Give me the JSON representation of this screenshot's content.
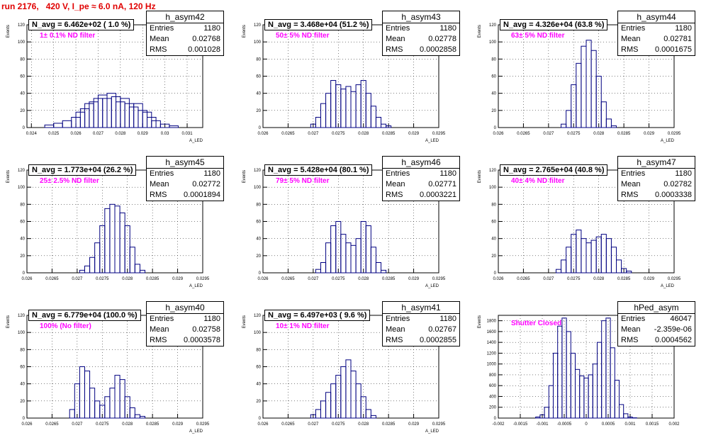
{
  "run_title": "run 2176,   420 V, I_pe ≈ 6.0 nA, 120 Hz",
  "ylabel": "Events",
  "stat_labels": {
    "entries": "Entries",
    "mean": "Mean",
    "rms": "RMS"
  },
  "colors": {
    "hist": "#000080",
    "filter": "#ff00ff",
    "title": "#e00000"
  },
  "chart_data": [
    {
      "type": "bar",
      "hist_name": "h_asym42",
      "navg": "N_avg = 6.462e+02 ( 1.0 %)",
      "filter": "1± 0.1% ND filter",
      "entries": "1180",
      "mean": "0.02768",
      "rms": "0.001028",
      "xlabel": "A_LED",
      "xlim": [
        0.0238,
        0.0317
      ],
      "ylim": [
        0,
        120
      ],
      "xticks": [
        0.024,
        0.025,
        0.026,
        0.027,
        0.028,
        0.029,
        0.03,
        0.031
      ],
      "xtick_labels": [
        "0.024",
        "0.025",
        "0.026",
        "0.027",
        "0.028",
        "0.029",
        "0.03",
        "0.031"
      ],
      "yticks": [
        0,
        20,
        40,
        60,
        80,
        100,
        120
      ],
      "ytick_labels": [
        "0",
        "20",
        "40",
        "60",
        "80",
        "100",
        "120"
      ],
      "x": [
        0.0248,
        0.0252,
        0.0256,
        0.026,
        0.0262,
        0.0264,
        0.0266,
        0.0268,
        0.027,
        0.0272,
        0.0274,
        0.0276,
        0.0278,
        0.028,
        0.0282,
        0.0284,
        0.0286,
        0.0288,
        0.029,
        0.0292,
        0.0294,
        0.0296,
        0.03,
        0.0304
      ],
      "values": [
        3,
        5,
        8,
        12,
        18,
        22,
        28,
        30,
        34,
        38,
        34,
        40,
        36,
        30,
        34,
        28,
        24,
        28,
        20,
        18,
        12,
        8,
        4,
        2
      ]
    },
    {
      "type": "bar",
      "hist_name": "h_asym43",
      "navg": "N_avg = 3.468e+04 (51.2 %)",
      "filter": "50± 5% ND filter",
      "entries": "1180",
      "mean": "0.02778",
      "rms": "0.0002858",
      "xlabel": "A_LED",
      "xlim": [
        0.026,
        0.0295
      ],
      "ylim": [
        0,
        120
      ],
      "xticks": [
        0.026,
        0.0265,
        0.027,
        0.0275,
        0.028,
        0.0285,
        0.029,
        0.0295
      ],
      "xtick_labels": [
        "0.026",
        "0.0265",
        "0.027",
        "0.0275",
        "0.028",
        "0.0285",
        "0.029",
        "0.0295"
      ],
      "yticks": [
        0,
        20,
        40,
        60,
        80,
        100,
        120
      ],
      "ytick_labels": [
        "0",
        "20",
        "40",
        "60",
        "80",
        "100",
        "120"
      ],
      "x": [
        0.027,
        0.0271,
        0.0272,
        0.0273,
        0.0274,
        0.0275,
        0.0276,
        0.0277,
        0.0278,
        0.0279,
        0.028,
        0.0281,
        0.0282,
        0.0283,
        0.0284,
        0.0285
      ],
      "values": [
        4,
        12,
        28,
        40,
        55,
        50,
        45,
        48,
        42,
        50,
        55,
        40,
        25,
        12,
        4,
        2
      ]
    },
    {
      "type": "bar",
      "hist_name": "h_asym44",
      "navg": "N_avg = 4.326e+04 (63.8 %)",
      "filter": "63± 5% ND filter",
      "entries": "1180",
      "mean": "0.02781",
      "rms": "0.0001675",
      "xlabel": "A_LED",
      "xlim": [
        0.026,
        0.0295
      ],
      "ylim": [
        0,
        120
      ],
      "xticks": [
        0.026,
        0.0265,
        0.027,
        0.0275,
        0.028,
        0.0285,
        0.029,
        0.0295
      ],
      "xtick_labels": [
        "0.026",
        "0.0265",
        "0.027",
        "0.0275",
        "0.028",
        "0.0285",
        "0.029",
        "0.0295"
      ],
      "yticks": [
        0,
        20,
        40,
        60,
        80,
        100,
        120
      ],
      "ytick_labels": [
        "0",
        "20",
        "40",
        "60",
        "80",
        "100",
        "120"
      ],
      "x": [
        0.0273,
        0.0274,
        0.0275,
        0.0276,
        0.0277,
        0.0278,
        0.0279,
        0.028,
        0.0281,
        0.0282,
        0.0283
      ],
      "values": [
        4,
        20,
        50,
        75,
        95,
        102,
        90,
        60,
        30,
        10,
        2
      ]
    },
    {
      "type": "bar",
      "hist_name": "h_asym45",
      "navg": "N_avg = 1.773e+04 (26.2 %)",
      "filter": "25± 2.5% ND filter",
      "entries": "1180",
      "mean": "0.02772",
      "rms": "0.0001894",
      "xlabel": "A_LED",
      "xlim": [
        0.026,
        0.0295
      ],
      "ylim": [
        0,
        120
      ],
      "xticks": [
        0.026,
        0.0265,
        0.027,
        0.0275,
        0.028,
        0.0285,
        0.029,
        0.0295
      ],
      "xtick_labels": [
        "0.026",
        "0.0265",
        "0.027",
        "0.0275",
        "0.028",
        "0.0285",
        "0.029",
        "0.0295"
      ],
      "yticks": [
        0,
        20,
        40,
        60,
        80,
        100,
        120
      ],
      "ytick_labels": [
        "0",
        "20",
        "40",
        "60",
        "80",
        "100",
        "120"
      ],
      "x": [
        0.0271,
        0.0272,
        0.0273,
        0.0274,
        0.0275,
        0.0276,
        0.0277,
        0.0278,
        0.0279,
        0.028,
        0.0281,
        0.0282,
        0.0283
      ],
      "values": [
        3,
        8,
        18,
        35,
        55,
        75,
        80,
        78,
        70,
        55,
        30,
        10,
        3
      ]
    },
    {
      "type": "bar",
      "hist_name": "h_asym46",
      "navg": "N_avg = 5.428e+04 (80.1 %)",
      "filter": "79± 5% ND filter",
      "entries": "1180",
      "mean": "0.02771",
      "rms": "0.0003221",
      "xlabel": "A_LED",
      "xlim": [
        0.026,
        0.0295
      ],
      "ylim": [
        0,
        120
      ],
      "xticks": [
        0.026,
        0.0265,
        0.027,
        0.0275,
        0.028,
        0.0285,
        0.029,
        0.0295
      ],
      "xtick_labels": [
        "0.026",
        "0.0265",
        "0.027",
        "0.0275",
        "0.028",
        "0.0285",
        "0.029",
        "0.0295"
      ],
      "yticks": [
        0,
        20,
        40,
        60,
        80,
        100,
        120
      ],
      "ytick_labels": [
        "0",
        "20",
        "40",
        "60",
        "80",
        "100",
        "120"
      ],
      "x": [
        0.0271,
        0.0272,
        0.0273,
        0.0274,
        0.0275,
        0.0276,
        0.0277,
        0.0278,
        0.0279,
        0.028,
        0.0281,
        0.0282,
        0.0283,
        0.0284
      ],
      "values": [
        4,
        12,
        35,
        55,
        60,
        45,
        35,
        32,
        40,
        60,
        55,
        30,
        12,
        3
      ]
    },
    {
      "type": "bar",
      "hist_name": "h_asym47",
      "navg": "N_avg = 2.765e+04 (40.8 %)",
      "filter": "40± 4% ND filter",
      "entries": "1180",
      "mean": "0.02782",
      "rms": "0.0003338",
      "xlabel": "A_LED",
      "xlim": [
        0.026,
        0.0295
      ],
      "ylim": [
        0,
        120
      ],
      "xticks": [
        0.026,
        0.0265,
        0.027,
        0.0275,
        0.028,
        0.0285,
        0.029,
        0.0295
      ],
      "xtick_labels": [
        "0.026",
        "0.0265",
        "0.027",
        "0.0275",
        "0.028",
        "0.0285",
        "0.029",
        "0.0295"
      ],
      "yticks": [
        0,
        20,
        40,
        60,
        80,
        100,
        120
      ],
      "ytick_labels": [
        "0",
        "20",
        "40",
        "60",
        "80",
        "100",
        "120"
      ],
      "x": [
        0.0272,
        0.0273,
        0.0274,
        0.0275,
        0.0276,
        0.0277,
        0.0278,
        0.0279,
        0.028,
        0.0281,
        0.0282,
        0.0283,
        0.0284,
        0.0285,
        0.0286
      ],
      "values": [
        4,
        15,
        30,
        45,
        50,
        40,
        35,
        38,
        42,
        45,
        40,
        30,
        15,
        5,
        2
      ]
    },
    {
      "type": "bar",
      "hist_name": "h_asym40",
      "navg": "N_avg = 6.779e+04 (100.0 %)",
      "filter": "100% (No filter)",
      "entries": "1180",
      "mean": "0.02758",
      "rms": "0.0003578",
      "xlabel": "A_LED",
      "xlim": [
        0.026,
        0.0295
      ],
      "ylim": [
        0,
        120
      ],
      "xticks": [
        0.026,
        0.0265,
        0.027,
        0.0275,
        0.028,
        0.0285,
        0.029,
        0.0295
      ],
      "xtick_labels": [
        "0.026",
        "0.0265",
        "0.027",
        "0.0275",
        "0.028",
        "0.0285",
        "0.029",
        "0.0295"
      ],
      "yticks": [
        0,
        20,
        40,
        60,
        80,
        100,
        120
      ],
      "ytick_labels": [
        "0",
        "20",
        "40",
        "60",
        "80",
        "100",
        "120"
      ],
      "x": [
        0.0269,
        0.027,
        0.0271,
        0.0272,
        0.0273,
        0.0274,
        0.0275,
        0.0276,
        0.0277,
        0.0278,
        0.0279,
        0.028,
        0.0281,
        0.0282,
        0.0283
      ],
      "values": [
        10,
        40,
        60,
        55,
        35,
        20,
        15,
        25,
        35,
        50,
        45,
        25,
        12,
        4,
        2
      ]
    },
    {
      "type": "bar",
      "hist_name": "h_asym41",
      "navg": "N_avg = 6.497e+03 ( 9.6 %)",
      "filter": "10± 1% ND filter",
      "entries": "1180",
      "mean": "0.02767",
      "rms": "0.0002855",
      "xlabel": "A_LED",
      "xlim": [
        0.026,
        0.0295
      ],
      "ylim": [
        0,
        120
      ],
      "xticks": [
        0.026,
        0.0265,
        0.027,
        0.0275,
        0.028,
        0.0285,
        0.029,
        0.0295
      ],
      "xtick_labels": [
        "0.026",
        "0.0265",
        "0.027",
        "0.0275",
        "0.028",
        "0.0285",
        "0.029",
        "0.0295"
      ],
      "yticks": [
        0,
        20,
        40,
        60,
        80,
        100,
        120
      ],
      "ytick_labels": [
        "0",
        "20",
        "40",
        "60",
        "80",
        "100",
        "120"
      ],
      "x": [
        0.027,
        0.0271,
        0.0272,
        0.0273,
        0.0274,
        0.0275,
        0.0276,
        0.0277,
        0.0278,
        0.0279,
        0.028,
        0.0281,
        0.0282
      ],
      "values": [
        4,
        10,
        20,
        30,
        40,
        50,
        60,
        68,
        55,
        40,
        25,
        10,
        3
      ]
    },
    {
      "type": "bar",
      "hist_name": "hPed_asym",
      "navg": "",
      "filter": "Shutter Closed",
      "entries": "46047",
      "mean": "-2.359e-06",
      "rms": "0.0004562",
      "xlabel": "",
      "xlim": [
        -0.002,
        0.002
      ],
      "ylim": [
        0,
        1900
      ],
      "xticks": [
        -0.002,
        -0.0015,
        -0.001,
        -0.0005,
        0,
        0.0005,
        0.001,
        0.0015,
        0.002
      ],
      "xtick_labels": [
        "-0.002",
        "-0.0015",
        "-0.001",
        "-0.0005",
        "0",
        "0.0005",
        "0.001",
        "0.0015",
        "0.002"
      ],
      "yticks": [
        0,
        200,
        400,
        600,
        800,
        1000,
        1200,
        1400,
        1600,
        1800
      ],
      "ytick_labels": [
        "0",
        "200",
        "400",
        "600",
        "800",
        "1000",
        "1200",
        "1400",
        "1600",
        "1800"
      ],
      "x": [
        -0.0011,
        -0.001,
        -0.0009,
        -0.0008,
        -0.0007,
        -0.0006,
        -0.0005,
        -0.0004,
        -0.0003,
        -0.0002,
        -0.0001,
        0,
        0.0001,
        0.0002,
        0.0003,
        0.0004,
        0.0005,
        0.0006,
        0.0007,
        0.0008,
        0.0009,
        0.001,
        0.0011
      ],
      "values": [
        20,
        60,
        200,
        600,
        1200,
        1700,
        1850,
        1600,
        1200,
        900,
        780,
        740,
        800,
        1000,
        1400,
        1800,
        1850,
        1300,
        700,
        250,
        80,
        20,
        5
      ]
    }
  ]
}
